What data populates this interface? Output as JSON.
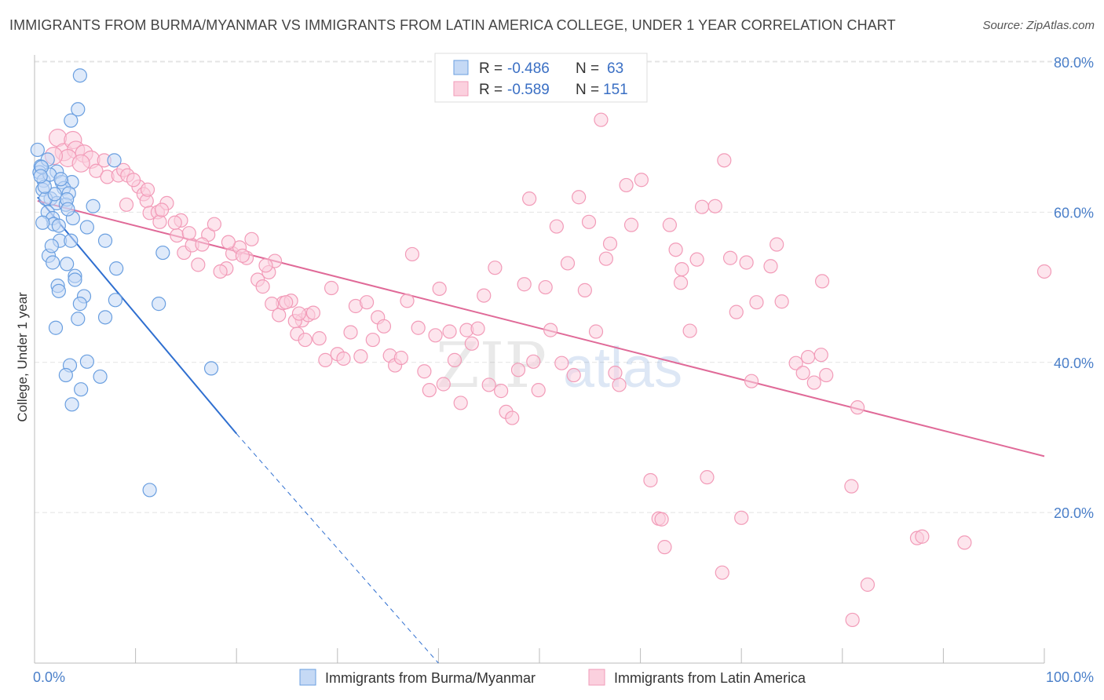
{
  "title": "IMMIGRANTS FROM BURMA/MYANMAR VS IMMIGRANTS FROM LATIN AMERICA COLLEGE, UNDER 1 YEAR CORRELATION CHART",
  "source": "Source: ZipAtlas.com",
  "watermark": {
    "zip": "ZIP",
    "atlas": "atlas"
  },
  "colors": {
    "blue": "#6a9fe0",
    "blue_line": "#2f6fd0",
    "pink": "#f29bb8",
    "pink_line": "#e06a98",
    "tick": "#4a7fc9"
  },
  "legend": {
    "rows": [
      {
        "r_label": "R =",
        "r_value": "-0.486",
        "n_label": "N =",
        "n_value": "63"
      },
      {
        "r_label": "R =",
        "r_value": "-0.589",
        "n_label": "N =",
        "n_value": "151"
      }
    ]
  },
  "chart_data": {
    "type": "scatter",
    "title": "IMMIGRANTS FROM BURMA/MYANMAR VS IMMIGRANTS FROM LATIN AMERICA COLLEGE, UNDER 1 YEAR CORRELATION CHART",
    "xlabel": "",
    "ylabel": "College, Under 1 year",
    "xlim": [
      0,
      100
    ],
    "ylim": [
      0,
      82
    ],
    "x_tick_labels": [
      "0.0%",
      "100.0%"
    ],
    "y_ticks": [
      20,
      40,
      60,
      80
    ],
    "y_tick_labels": [
      "20.0%",
      "40.0%",
      "60.0%",
      "80.0%"
    ],
    "grid": "horizontal dashed",
    "legend_position": "top-center",
    "series": [
      {
        "name": "Immigrants from Burma/Myanmar",
        "color": "#6a9fe0",
        "r": -0.486,
        "n": 63,
        "trend": {
          "x0": 0.3,
          "y0": 62.0,
          "x1": 20.0,
          "y1": 30.5,
          "dash_to_x": 40.0,
          "dash_to_y": -1.0
        },
        "points": [
          [
            4.5,
            78.2
          ],
          [
            4.3,
            73.7
          ],
          [
            3.6,
            72.2
          ],
          [
            0.3,
            68.3
          ],
          [
            0.6,
            66.1
          ],
          [
            0.5,
            65.3
          ],
          [
            1.3,
            67.0
          ],
          [
            0.9,
            64.2
          ],
          [
            2.2,
            65.4
          ],
          [
            1.5,
            65.0
          ],
          [
            2.7,
            64.0
          ],
          [
            3.7,
            64.0
          ],
          [
            0.8,
            63.0
          ],
          [
            2.9,
            63.2
          ],
          [
            3.4,
            62.5
          ],
          [
            1.6,
            61.8
          ],
          [
            2.2,
            61.2
          ],
          [
            3.1,
            61.0
          ],
          [
            1.3,
            60.0
          ],
          [
            1.8,
            59.2
          ],
          [
            1.9,
            58.4
          ],
          [
            3.8,
            59.2
          ],
          [
            0.8,
            58.6
          ],
          [
            2.5,
            56.2
          ],
          [
            3.6,
            56.2
          ],
          [
            1.4,
            54.2
          ],
          [
            1.8,
            53.3
          ],
          [
            3.2,
            53.1
          ],
          [
            4.0,
            51.5
          ],
          [
            4.0,
            51.0
          ],
          [
            2.3,
            50.2
          ],
          [
            2.4,
            49.5
          ],
          [
            4.9,
            48.8
          ],
          [
            4.5,
            47.8
          ],
          [
            8.1,
            52.5
          ],
          [
            7.9,
            66.9
          ],
          [
            7.0,
            56.2
          ],
          [
            8.0,
            48.3
          ],
          [
            12.7,
            54.6
          ],
          [
            12.3,
            47.8
          ],
          [
            2.1,
            44.6
          ],
          [
            4.3,
            45.8
          ],
          [
            7.0,
            46.0
          ],
          [
            3.5,
            39.6
          ],
          [
            5.2,
            40.1
          ],
          [
            3.1,
            38.3
          ],
          [
            6.5,
            38.1
          ],
          [
            4.6,
            36.4
          ],
          [
            3.7,
            34.4
          ],
          [
            17.5,
            39.2
          ],
          [
            11.4,
            23.0
          ],
          [
            5.8,
            60.8
          ],
          [
            1.1,
            61.8
          ],
          [
            3.2,
            61.7
          ],
          [
            2.4,
            58.2
          ],
          [
            2.0,
            62.4
          ],
          [
            0.7,
            66.0
          ],
          [
            1.0,
            63.4
          ],
          [
            2.6,
            64.4
          ],
          [
            3.3,
            60.4
          ],
          [
            1.7,
            55.5
          ],
          [
            5.2,
            58.0
          ],
          [
            0.6,
            64.8
          ]
        ]
      },
      {
        "name": "Immigrants from Latin America",
        "color": "#f29bb8",
        "r": -0.589,
        "n": 151,
        "trend": {
          "x0": 0.3,
          "y0": 61.5,
          "x1": 100.0,
          "y1": 27.5
        },
        "points": [
          [
            2.3,
            69.9
          ],
          [
            2.9,
            68.0
          ],
          [
            3.8,
            69.6
          ],
          [
            4.1,
            68.3
          ],
          [
            4.9,
            67.8
          ],
          [
            5.6,
            67.0
          ],
          [
            6.1,
            65.5
          ],
          [
            7.2,
            64.7
          ],
          [
            8.3,
            64.9
          ],
          [
            8.8,
            65.6
          ],
          [
            9.2,
            64.9
          ],
          [
            10.3,
            63.4
          ],
          [
            10.8,
            62.4
          ],
          [
            11.1,
            61.5
          ],
          [
            11.4,
            59.9
          ],
          [
            12.2,
            60.0
          ],
          [
            13.1,
            61.2
          ],
          [
            12.4,
            58.7
          ],
          [
            9.1,
            61.0
          ],
          [
            14.1,
            56.9
          ],
          [
            14.8,
            54.6
          ],
          [
            15.6,
            55.6
          ],
          [
            16.2,
            53.0
          ],
          [
            17.2,
            57.0
          ],
          [
            17.8,
            58.4
          ],
          [
            19.0,
            52.5
          ],
          [
            19.6,
            54.5
          ],
          [
            20.3,
            55.3
          ],
          [
            21.0,
            53.9
          ],
          [
            21.5,
            56.4
          ],
          [
            22.1,
            51.0
          ],
          [
            22.6,
            50.1
          ],
          [
            23.2,
            52.0
          ],
          [
            23.8,
            53.5
          ],
          [
            24.2,
            46.3
          ],
          [
            24.6,
            47.9
          ],
          [
            25.4,
            48.2
          ],
          [
            26.0,
            43.8
          ],
          [
            26.5,
            45.6
          ],
          [
            27.1,
            46.3
          ],
          [
            27.6,
            46.6
          ],
          [
            28.2,
            43.2
          ],
          [
            28.8,
            40.3
          ],
          [
            29.4,
            49.9
          ],
          [
            30.0,
            41.1
          ],
          [
            30.6,
            40.5
          ],
          [
            31.3,
            44.0
          ],
          [
            31.8,
            47.5
          ],
          [
            32.3,
            40.8
          ],
          [
            32.9,
            48.0
          ],
          [
            33.5,
            43.0
          ],
          [
            34.0,
            46.0
          ],
          [
            34.6,
            44.8
          ],
          [
            35.2,
            40.9
          ],
          [
            35.7,
            39.6
          ],
          [
            36.3,
            40.6
          ],
          [
            36.9,
            48.2
          ],
          [
            37.4,
            54.4
          ],
          [
            38.0,
            44.6
          ],
          [
            38.6,
            38.8
          ],
          [
            39.1,
            36.3
          ],
          [
            39.7,
            43.6
          ],
          [
            40.1,
            49.8
          ],
          [
            40.5,
            37.1
          ],
          [
            41.1,
            44.1
          ],
          [
            41.6,
            40.3
          ],
          [
            42.2,
            34.6
          ],
          [
            42.8,
            44.3
          ],
          [
            43.3,
            42.5
          ],
          [
            43.9,
            44.5
          ],
          [
            44.5,
            48.9
          ],
          [
            45.0,
            37.0
          ],
          [
            45.6,
            52.6
          ],
          [
            46.2,
            36.2
          ],
          [
            46.7,
            33.4
          ],
          [
            47.3,
            32.6
          ],
          [
            47.9,
            39.0
          ],
          [
            48.5,
            50.4
          ],
          [
            49.0,
            61.8
          ],
          [
            49.4,
            40.1
          ],
          [
            49.9,
            36.3
          ],
          [
            50.6,
            50.0
          ],
          [
            51.1,
            44.3
          ],
          [
            51.7,
            58.1
          ],
          [
            52.2,
            39.9
          ],
          [
            52.8,
            53.2
          ],
          [
            53.4,
            38.3
          ],
          [
            53.9,
            62.0
          ],
          [
            54.5,
            49.6
          ],
          [
            54.9,
            58.7
          ],
          [
            55.6,
            44.1
          ],
          [
            56.1,
            72.3
          ],
          [
            56.6,
            53.8
          ],
          [
            57.0,
            55.8
          ],
          [
            57.5,
            38.6
          ],
          [
            57.9,
            37.0
          ],
          [
            58.6,
            63.6
          ],
          [
            59.1,
            58.3
          ],
          [
            60.1,
            64.3
          ],
          [
            61.0,
            24.3
          ],
          [
            61.8,
            19.2
          ],
          [
            62.1,
            19.1
          ],
          [
            62.4,
            15.4
          ],
          [
            62.9,
            58.3
          ],
          [
            63.5,
            55.0
          ],
          [
            64.1,
            52.4
          ],
          [
            64.0,
            50.6
          ],
          [
            64.9,
            44.2
          ],
          [
            65.6,
            53.7
          ],
          [
            66.1,
            60.7
          ],
          [
            66.6,
            24.7
          ],
          [
            67.4,
            60.8
          ],
          [
            68.1,
            12.0
          ],
          [
            68.3,
            66.9
          ],
          [
            68.9,
            53.9
          ],
          [
            69.5,
            46.7
          ],
          [
            70.0,
            19.3
          ],
          [
            70.5,
            53.3
          ],
          [
            71.0,
            37.5
          ],
          [
            71.5,
            48.0
          ],
          [
            72.9,
            52.8
          ],
          [
            73.5,
            55.7
          ],
          [
            74.0,
            48.1
          ],
          [
            75.4,
            39.9
          ],
          [
            76.1,
            38.6
          ],
          [
            76.6,
            40.7
          ],
          [
            77.2,
            37.3
          ],
          [
            78.4,
            38.3
          ],
          [
            78.0,
            50.8
          ],
          [
            77.9,
            41.0
          ],
          [
            80.9,
            23.5
          ],
          [
            81.5,
            34.0
          ],
          [
            82.5,
            10.4
          ],
          [
            81.0,
            5.7
          ],
          [
            87.4,
            16.6
          ],
          [
            87.9,
            16.8
          ],
          [
            92.1,
            16.0
          ],
          [
            100.0,
            52.1
          ],
          [
            14.5,
            58.9
          ],
          [
            16.6,
            55.7
          ],
          [
            18.4,
            52.1
          ],
          [
            20.6,
            54.2
          ],
          [
            23.5,
            47.8
          ],
          [
            25.8,
            45.5
          ],
          [
            26.8,
            43.0
          ],
          [
            3.3,
            67.2
          ],
          [
            9.8,
            64.3
          ],
          [
            12.6,
            60.3
          ],
          [
            15.3,
            57.2
          ],
          [
            19.2,
            56.0
          ],
          [
            4.6,
            66.5
          ],
          [
            6.9,
            66.9
          ],
          [
            1.9,
            67.5
          ],
          [
            11.2,
            63.0
          ],
          [
            13.9,
            58.6
          ],
          [
            22.9,
            52.9
          ],
          [
            24.9,
            48.0
          ],
          [
            26.2,
            46.5
          ]
        ]
      }
    ]
  },
  "bottom_legend": {
    "items": [
      {
        "label": "Immigrants from Burma/Myanmar"
      },
      {
        "label": "Immigrants from Latin America"
      }
    ]
  }
}
